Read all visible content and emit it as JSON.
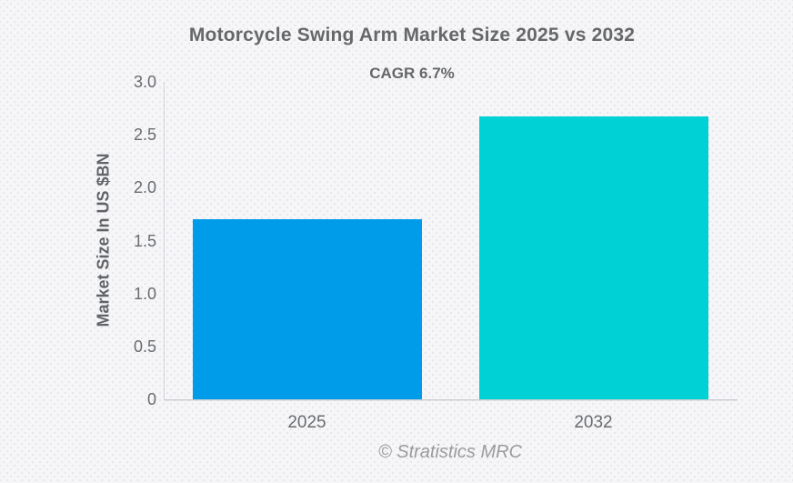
{
  "chart_data": {
    "type": "bar",
    "title": "Motorcycle Swing Arm Market Size 2025 vs 2032",
    "subtitle": "CAGR 6.7%",
    "categories": [
      "2025",
      "2032"
    ],
    "values": [
      1.7,
      2.67
    ],
    "unit": "US $BN",
    "bar_colors": [
      "#019ce9",
      "#00d1d4"
    ],
    "xlabel": "",
    "ylabel": "Market Size In US $BN",
    "ylim": [
      0,
      3.0
    ],
    "yticks": [
      "0",
      "0.5",
      "1.0",
      "1.5",
      "2.0",
      "2.5",
      "3.0"
    ],
    "grid": false,
    "legend": false
  },
  "footer": {
    "credit": "© Stratistics MRC"
  },
  "colors": {
    "background": "#f6f6f8",
    "title_text": "#666769",
    "tick_text": "#696b6e",
    "axis_line": "#cccdd1",
    "footer_text": "#9b9b9b",
    "bar_2025": "#019ce9",
    "bar_2032": "#00d1d4"
  }
}
